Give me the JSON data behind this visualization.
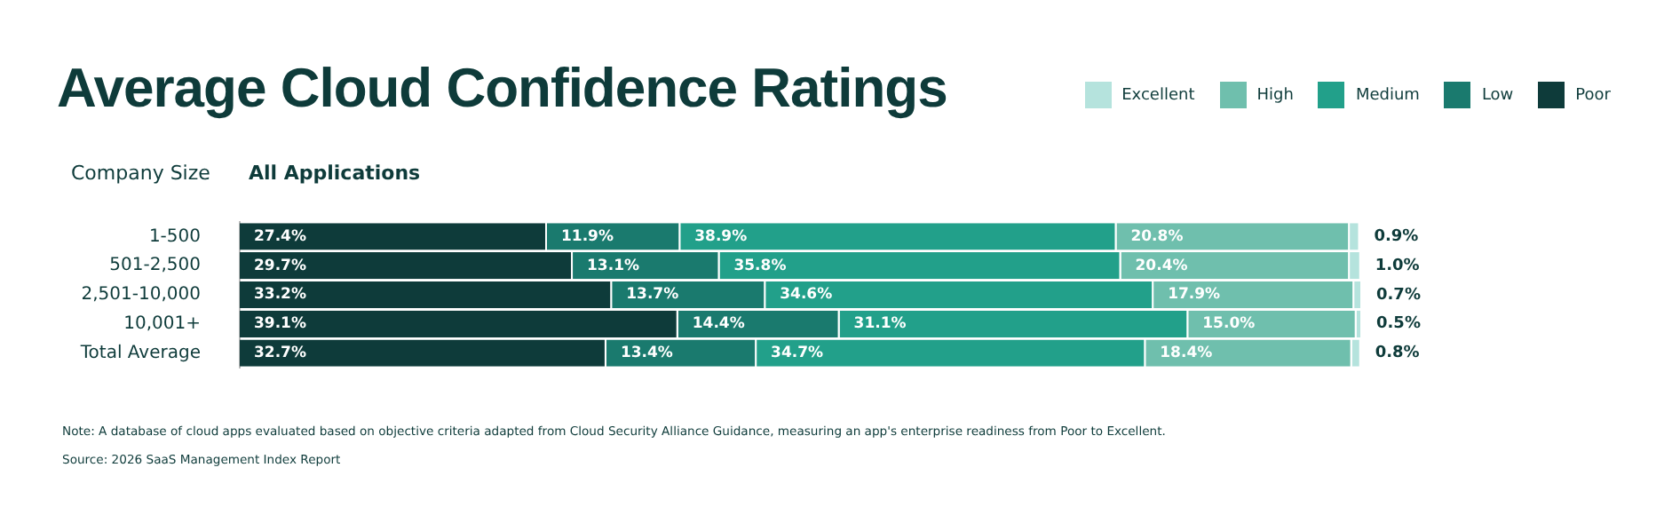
{
  "chart_data": {
    "type": "bar",
    "orientation": "horizontal",
    "stacked": true,
    "title": "Average Cloud Confidence Ratings",
    "subtitle": "All Applications",
    "ylabel": "Company Size",
    "categories": [
      "1-500",
      "501-2,500",
      "2,501-10,000",
      "10,001+",
      "Total Average"
    ],
    "series": [
      {
        "name": "Poor",
        "color": "#0e3b3a",
        "values": [
          27.4,
          29.7,
          33.2,
          39.1,
          32.7
        ],
        "value_labels": [
          "27.4%",
          "29.7%",
          "33.2%",
          "39.1%",
          "32.7%"
        ]
      },
      {
        "name": "Low",
        "color": "#1a7a6e",
        "values": [
          11.9,
          13.1,
          13.7,
          14.4,
          13.4
        ],
        "value_labels": [
          "11.9%",
          "13.1%",
          "13.7%",
          "14.4%",
          "13.4%"
        ]
      },
      {
        "name": "Medium",
        "color": "#22a08a",
        "values": [
          38.9,
          35.8,
          34.6,
          31.1,
          34.7
        ],
        "value_labels": [
          "38.9%",
          "35.8%",
          "34.6%",
          "31.1%",
          "34.7%"
        ]
      },
      {
        "name": "High",
        "color": "#6fbfad",
        "values": [
          20.8,
          20.4,
          17.9,
          15.0,
          18.4
        ],
        "value_labels": [
          "20.8%",
          "20.4%",
          "17.9%",
          "15.0%",
          "18.4%"
        ]
      },
      {
        "name": "Excellent",
        "color": "#b5e3dd",
        "values": [
          0.9,
          1.0,
          0.7,
          0.5,
          0.8
        ],
        "value_labels": [
          "0.9%",
          "1.0%",
          "0.7%",
          "0.5%",
          "0.8%"
        ]
      }
    ],
    "legend": "top right",
    "annotations": [
      "Note: A database of cloud apps evaluated based on objective criteria adapted from Cloud Security Alliance Guidance, measuring an app's enterprise readiness from Poor to Excellent.",
      "Source: 2026 SaaS Management Index Report"
    ]
  }
}
